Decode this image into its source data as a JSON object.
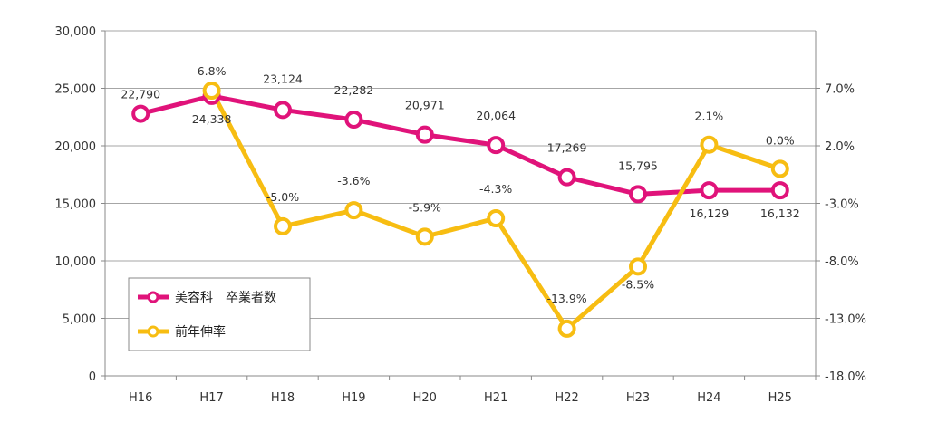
{
  "chart_data": {
    "type": "line",
    "categories": [
      "H16",
      "H17",
      "H18",
      "H19",
      "H20",
      "H21",
      "H22",
      "H23",
      "H24",
      "H25"
    ],
    "series": [
      {
        "name": "美容科　卒業者数",
        "axis": "left",
        "color": "#e0137a",
        "values": [
          22790,
          24338,
          23124,
          22282,
          20971,
          20064,
          17269,
          15795,
          16129,
          16132
        ],
        "labels": [
          "22,790",
          "24,338",
          "23,124",
          "22,282",
          "20,971",
          "20,064",
          "17,269",
          "15,795",
          "16,129",
          "16,132"
        ]
      },
      {
        "name": "前年伸率",
        "axis": "right",
        "color": "#f7bd12",
        "values": [
          null,
          6.8,
          -5.0,
          -3.6,
          -5.9,
          -4.3,
          -13.9,
          -8.5,
          2.1,
          0.0
        ],
        "labels": [
          "",
          "6.8%",
          "-5.0%",
          "-3.6%",
          "-5.9%",
          "-4.3%",
          "-13.9%",
          "-8.5%",
          "2.1%",
          "0.0%"
        ]
      }
    ],
    "left_axis": {
      "ylim": [
        0,
        30000
      ],
      "ticks": [
        0,
        5000,
        10000,
        15000,
        20000,
        25000,
        30000
      ],
      "tick_labels": [
        "0",
        "5,000",
        "10,000",
        "15,000",
        "20,000",
        "25,000",
        "30,000"
      ]
    },
    "right_axis": {
      "ylim": [
        -18,
        12
      ],
      "ticks": [
        -18,
        -13,
        -8,
        -3,
        2,
        7
      ],
      "tick_labels": [
        "-18.0%",
        "-13.0%",
        "-8.0%",
        "-3.0%",
        "2.0%",
        "7.0%"
      ]
    },
    "grid": true,
    "legend_position": "bottom-left"
  }
}
